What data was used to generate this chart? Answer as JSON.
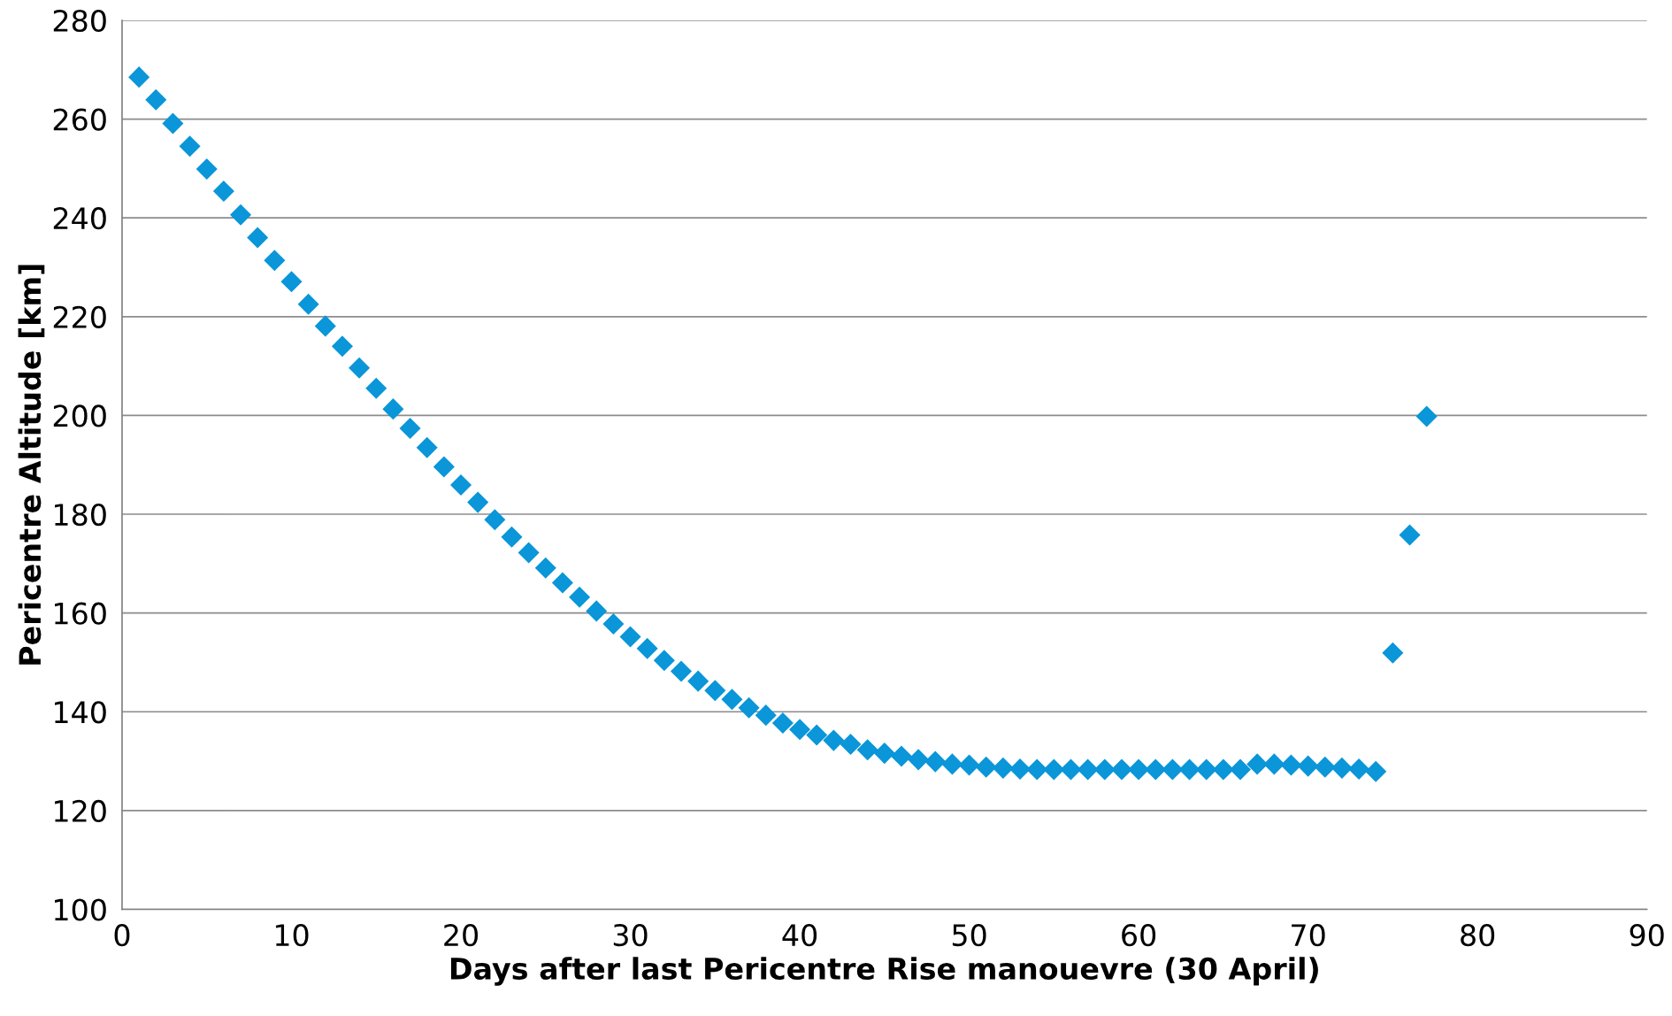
{
  "chart_data": {
    "type": "scatter",
    "xlabel": "Days after last Pericentre Rise manouevre (30 April)",
    "ylabel": "Pericentre Altitude [km]",
    "x": [
      1,
      2,
      3,
      4,
      5,
      6,
      7,
      8,
      9,
      10,
      11,
      12,
      13,
      14,
      15,
      16,
      17,
      18,
      19,
      20,
      21,
      22,
      23,
      24,
      25,
      26,
      27,
      28,
      29,
      30,
      31,
      32,
      33,
      34,
      35,
      36,
      37,
      38,
      39,
      40,
      41,
      42,
      43,
      44,
      45,
      46,
      47,
      48,
      49,
      50,
      51,
      52,
      53,
      54,
      55,
      56,
      57,
      58,
      59,
      60,
      61,
      62,
      63,
      64,
      65,
      66,
      67,
      68,
      69,
      70,
      71,
      72,
      73,
      74,
      75,
      76,
      77
    ],
    "series": [
      {
        "color": "#0a96d8",
        "values": [
          268.5,
          263.9,
          259.1,
          254.5,
          249.9,
          245.4,
          240.6,
          236.0,
          231.4,
          227.1,
          222.5,
          218.1,
          214.0,
          209.6,
          205.5,
          201.3,
          197.4,
          193.5,
          189.6,
          185.9,
          182.4,
          178.9,
          175.4,
          172.2,
          169.1,
          166.1,
          163.2,
          160.4,
          157.8,
          155.2,
          152.8,
          150.4,
          148.2,
          146.2,
          144.3,
          142.5,
          140.8,
          139.3,
          137.7,
          136.4,
          135.3,
          134.2,
          133.4,
          132.3,
          131.6,
          131.0,
          130.3,
          129.9,
          129.4,
          129.2,
          128.8,
          128.6,
          128.4,
          128.3,
          128.3,
          128.3,
          128.3,
          128.3,
          128.3,
          128.3,
          128.3,
          128.3,
          128.3,
          128.3,
          128.3,
          128.3,
          129.4,
          129.4,
          129.2,
          129.0,
          128.8,
          128.6,
          128.4,
          127.9,
          151.9,
          175.8,
          199.8
        ]
      }
    ],
    "xlim": [
      0,
      90
    ],
    "xticks": [
      0,
      10,
      20,
      30,
      40,
      50,
      60,
      70,
      80,
      90
    ],
    "ylim": [
      100,
      280
    ],
    "yticks": [
      100,
      120,
      140,
      160,
      180,
      200,
      220,
      240,
      260,
      280
    ],
    "grid": "y",
    "marker": "diamond"
  }
}
